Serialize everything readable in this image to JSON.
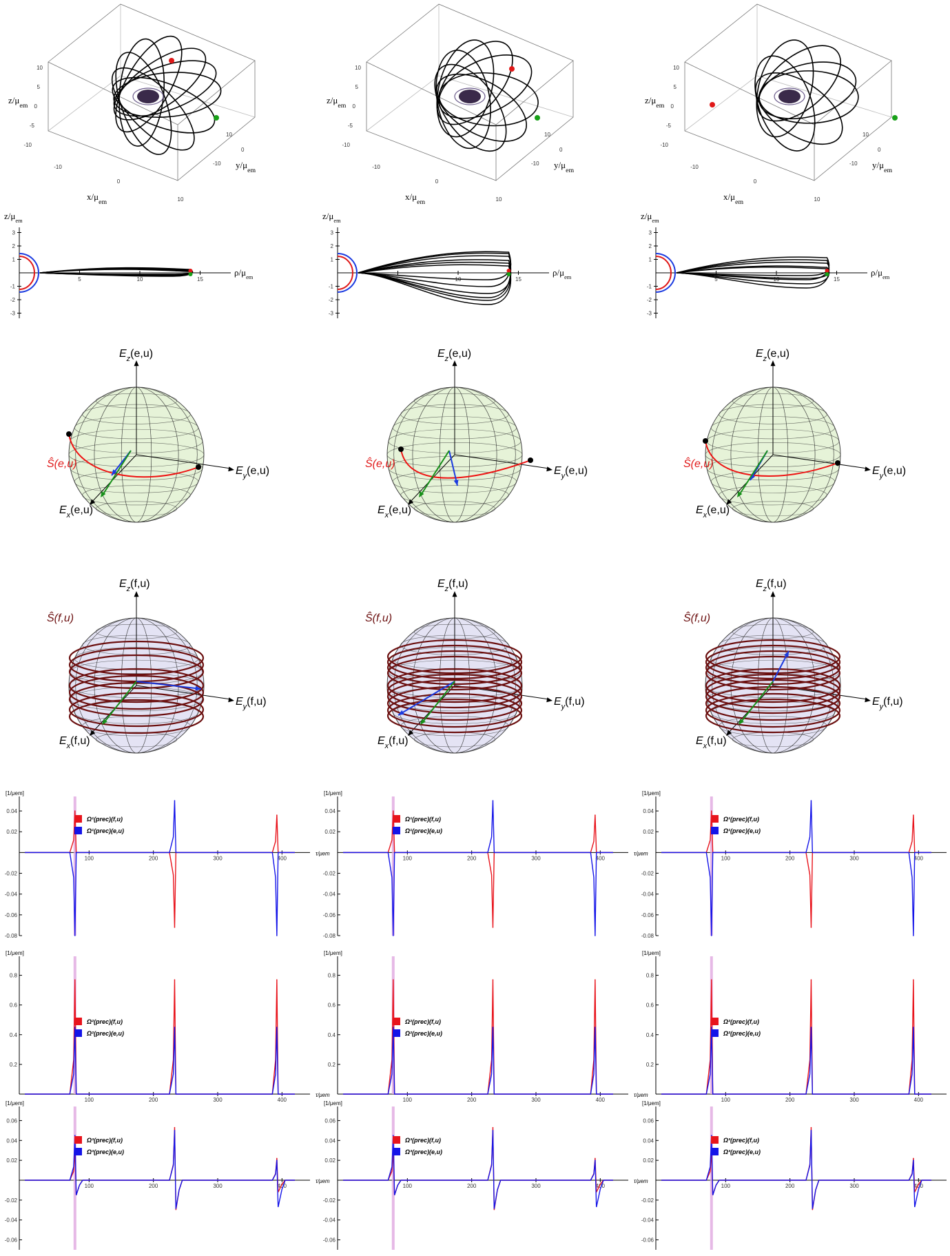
{
  "columns": 3,
  "orbit3d": {
    "z_label": "z/μ",
    "z_sub": "em",
    "x_label": "x/μ",
    "x_sub": "em",
    "y_label": "y/μ",
    "y_sub": "em",
    "z_ticks": [
      "10",
      "5",
      "0",
      "-5",
      "-10"
    ],
    "x_ticks": [
      "-10",
      "0",
      "10"
    ],
    "y_ticks": [
      "10",
      "0",
      "-10"
    ]
  },
  "rho_z": {
    "y_label": "z/μ",
    "y_sub": "em",
    "x_label": "ρ/μ",
    "x_sub": "em",
    "y_ticks": [
      "3",
      "2",
      "1",
      "-1",
      "-2",
      "-3"
    ],
    "x_ticks": [
      "5",
      "10",
      "15"
    ]
  },
  "sphere_e": {
    "title": "Ŝ(e,u)",
    "ez": "E_z(e,u)",
    "ey": "E_y(e,u)",
    "ex": "E_x(e,u)",
    "ez_parts": [
      "E",
      "z",
      "(e,u)"
    ],
    "ey_parts": [
      "E",
      "y",
      "(e,u)"
    ],
    "ex_parts": [
      "E",
      "x",
      "(e,u)"
    ],
    "s_parts": [
      "Ŝ",
      "(e,u)"
    ],
    "colors": {
      "fill": "#e6f3d8",
      "curve": "#ee1111"
    }
  },
  "sphere_f": {
    "ez_parts": [
      "E",
      "z",
      "(f,u)"
    ],
    "ey_parts": [
      "E",
      "y",
      "(f,u)"
    ],
    "ex_parts": [
      "E",
      "x",
      "(f,u)"
    ],
    "s_parts": [
      "Ŝ",
      "(f,u)"
    ],
    "colors": {
      "fill": "#e4e3f4",
      "curve": "#6b0f0f"
    }
  },
  "omega": {
    "y_unit": "[1/μ",
    "y_unit_sub": "em",
    "x_label": "τ/μ",
    "x_sub": "em",
    "x_ticks": [
      "100",
      "200",
      "300",
      "400"
    ],
    "panels": [
      {
        "id": "omega1",
        "legend_f": "Ω¹(prec)(f,u)",
        "legend_e": "Ω¹(prec)(e,u)",
        "y_ticks": [
          "0.04",
          "0.02",
          "-0.02",
          "-0.04",
          "-0.06",
          "-0.08"
        ]
      },
      {
        "id": "omega2",
        "legend_f": "Ω²(prec)(f,u)",
        "legend_e": "Ω²(prec)(e,u)",
        "y_ticks": [
          "0.8",
          "0.6",
          "0.4",
          "0.2"
        ]
      },
      {
        "id": "omega3",
        "legend_f": "Ω³(prec)(f,u)",
        "legend_e": "Ω³(prec)(e,u)",
        "y_ticks": [
          "0.06",
          "0.04",
          "0.02",
          "-0.02",
          "-0.04",
          "-0.06"
        ]
      }
    ],
    "colors": {
      "f": "#e8141c",
      "e": "#1414e8",
      "marker": "#e0a8e0"
    }
  },
  "chart_data": [
    {
      "type": "line",
      "id": "omega1",
      "xlim": [
        0,
        420
      ],
      "ylim": [
        -0.08,
        0.05
      ],
      "series": [
        {
          "name": "Ω¹(prec)(f,u)",
          "x": [
            70,
            78,
            85,
            225,
            233,
            240,
            385,
            392,
            400
          ],
          "y": [
            0,
            0.04,
            0,
            0,
            -0.072,
            0,
            0,
            0.036,
            0
          ]
        },
        {
          "name": "Ω¹(prec)(e,u)",
          "x": [
            70,
            78,
            85,
            225,
            233,
            240,
            385,
            392,
            400
          ],
          "y": [
            0,
            -0.08,
            0,
            0,
            0.05,
            0,
            0,
            -0.08,
            0
          ]
        }
      ]
    },
    {
      "type": "line",
      "id": "omega2",
      "xlim": [
        0,
        420
      ],
      "ylim": [
        0,
        0.9
      ],
      "series": [
        {
          "name": "Ω²(prec)(f,u)",
          "x": [
            70,
            78,
            85,
            225,
            233,
            240,
            385,
            392,
            400
          ],
          "y": [
            0,
            0.77,
            0,
            0,
            0.77,
            0,
            0,
            0.77,
            0
          ]
        },
        {
          "name": "Ω²(prec)(e,u)",
          "x": [
            70,
            78,
            85,
            225,
            233,
            240,
            385,
            392,
            400
          ],
          "y": [
            0,
            0.45,
            0,
            0,
            0.45,
            0,
            0,
            0.45,
            0
          ]
        }
      ]
    },
    {
      "type": "line",
      "id": "omega3",
      "xlim": [
        0,
        420
      ],
      "ylim": [
        -0.07,
        0.07
      ],
      "series": [
        {
          "name": "Ω³(prec)(f,u)",
          "x": [
            70,
            78,
            85,
            225,
            233,
            240,
            385,
            392,
            400
          ],
          "y": [
            0,
            0.03,
            -0.025,
            0,
            0.053,
            -0.05,
            0,
            0.022,
            -0.02
          ]
        },
        {
          "name": "Ω³(prec)(e,u)",
          "x": [
            70,
            78,
            85,
            225,
            233,
            240,
            385,
            392,
            400
          ],
          "y": [
            0,
            0.045,
            -0.025,
            0,
            0.05,
            -0.048,
            0,
            0.02,
            -0.045
          ]
        }
      ]
    }
  ]
}
